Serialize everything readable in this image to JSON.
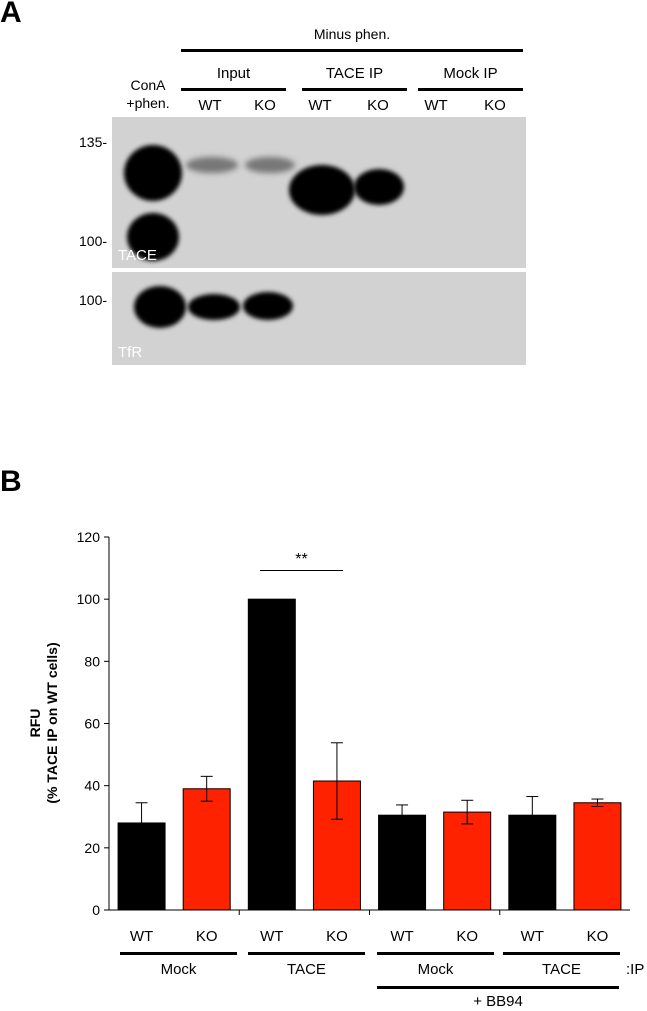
{
  "panel_a": {
    "letter": "A",
    "header_minus": "Minus phen.",
    "conA_line1": "ConA",
    "conA_line2": "+phen.",
    "groups": [
      "Input",
      "TACE IP",
      "Mock IP"
    ],
    "lanes": [
      "WT",
      "KO",
      "WT",
      "KO",
      "WT",
      "KO"
    ],
    "mw_top_135": "135-",
    "mw_top_100": "100-",
    "mw_bottom_100": "100-",
    "blot_top_label": "TACE",
    "blot_bottom_label": "TfR"
  },
  "panel_b": {
    "letter": "B",
    "ylabel_line1": "RFU",
    "ylabel_line2": "(% TACE IP on WT cells)",
    "significance": "**",
    "groups": [
      "Mock",
      "TACE",
      "Mock",
      "TACE"
    ],
    "ip_suffix": ":IP",
    "treatment": "+ BB94"
  },
  "chart_data": {
    "type": "bar",
    "ylabel": "RFU (% TACE IP on WT cells)",
    "ylim": [
      0,
      120
    ],
    "yticks": [
      0,
      20,
      40,
      60,
      80,
      100,
      120
    ],
    "categories": [
      "WT",
      "KO",
      "WT",
      "KO",
      "WT",
      "KO",
      "WT",
      "KO"
    ],
    "values": [
      28,
      39,
      100,
      41.5,
      30.5,
      31.5,
      30.5,
      34.5
    ],
    "errors": [
      6.5,
      4,
      0,
      12.3,
      3.3,
      3.8,
      6,
      1.2
    ],
    "colors": [
      "#000000",
      "#ff2200",
      "#000000",
      "#ff2200",
      "#000000",
      "#ff2200",
      "#000000",
      "#ff2200"
    ],
    "grid": false
  }
}
